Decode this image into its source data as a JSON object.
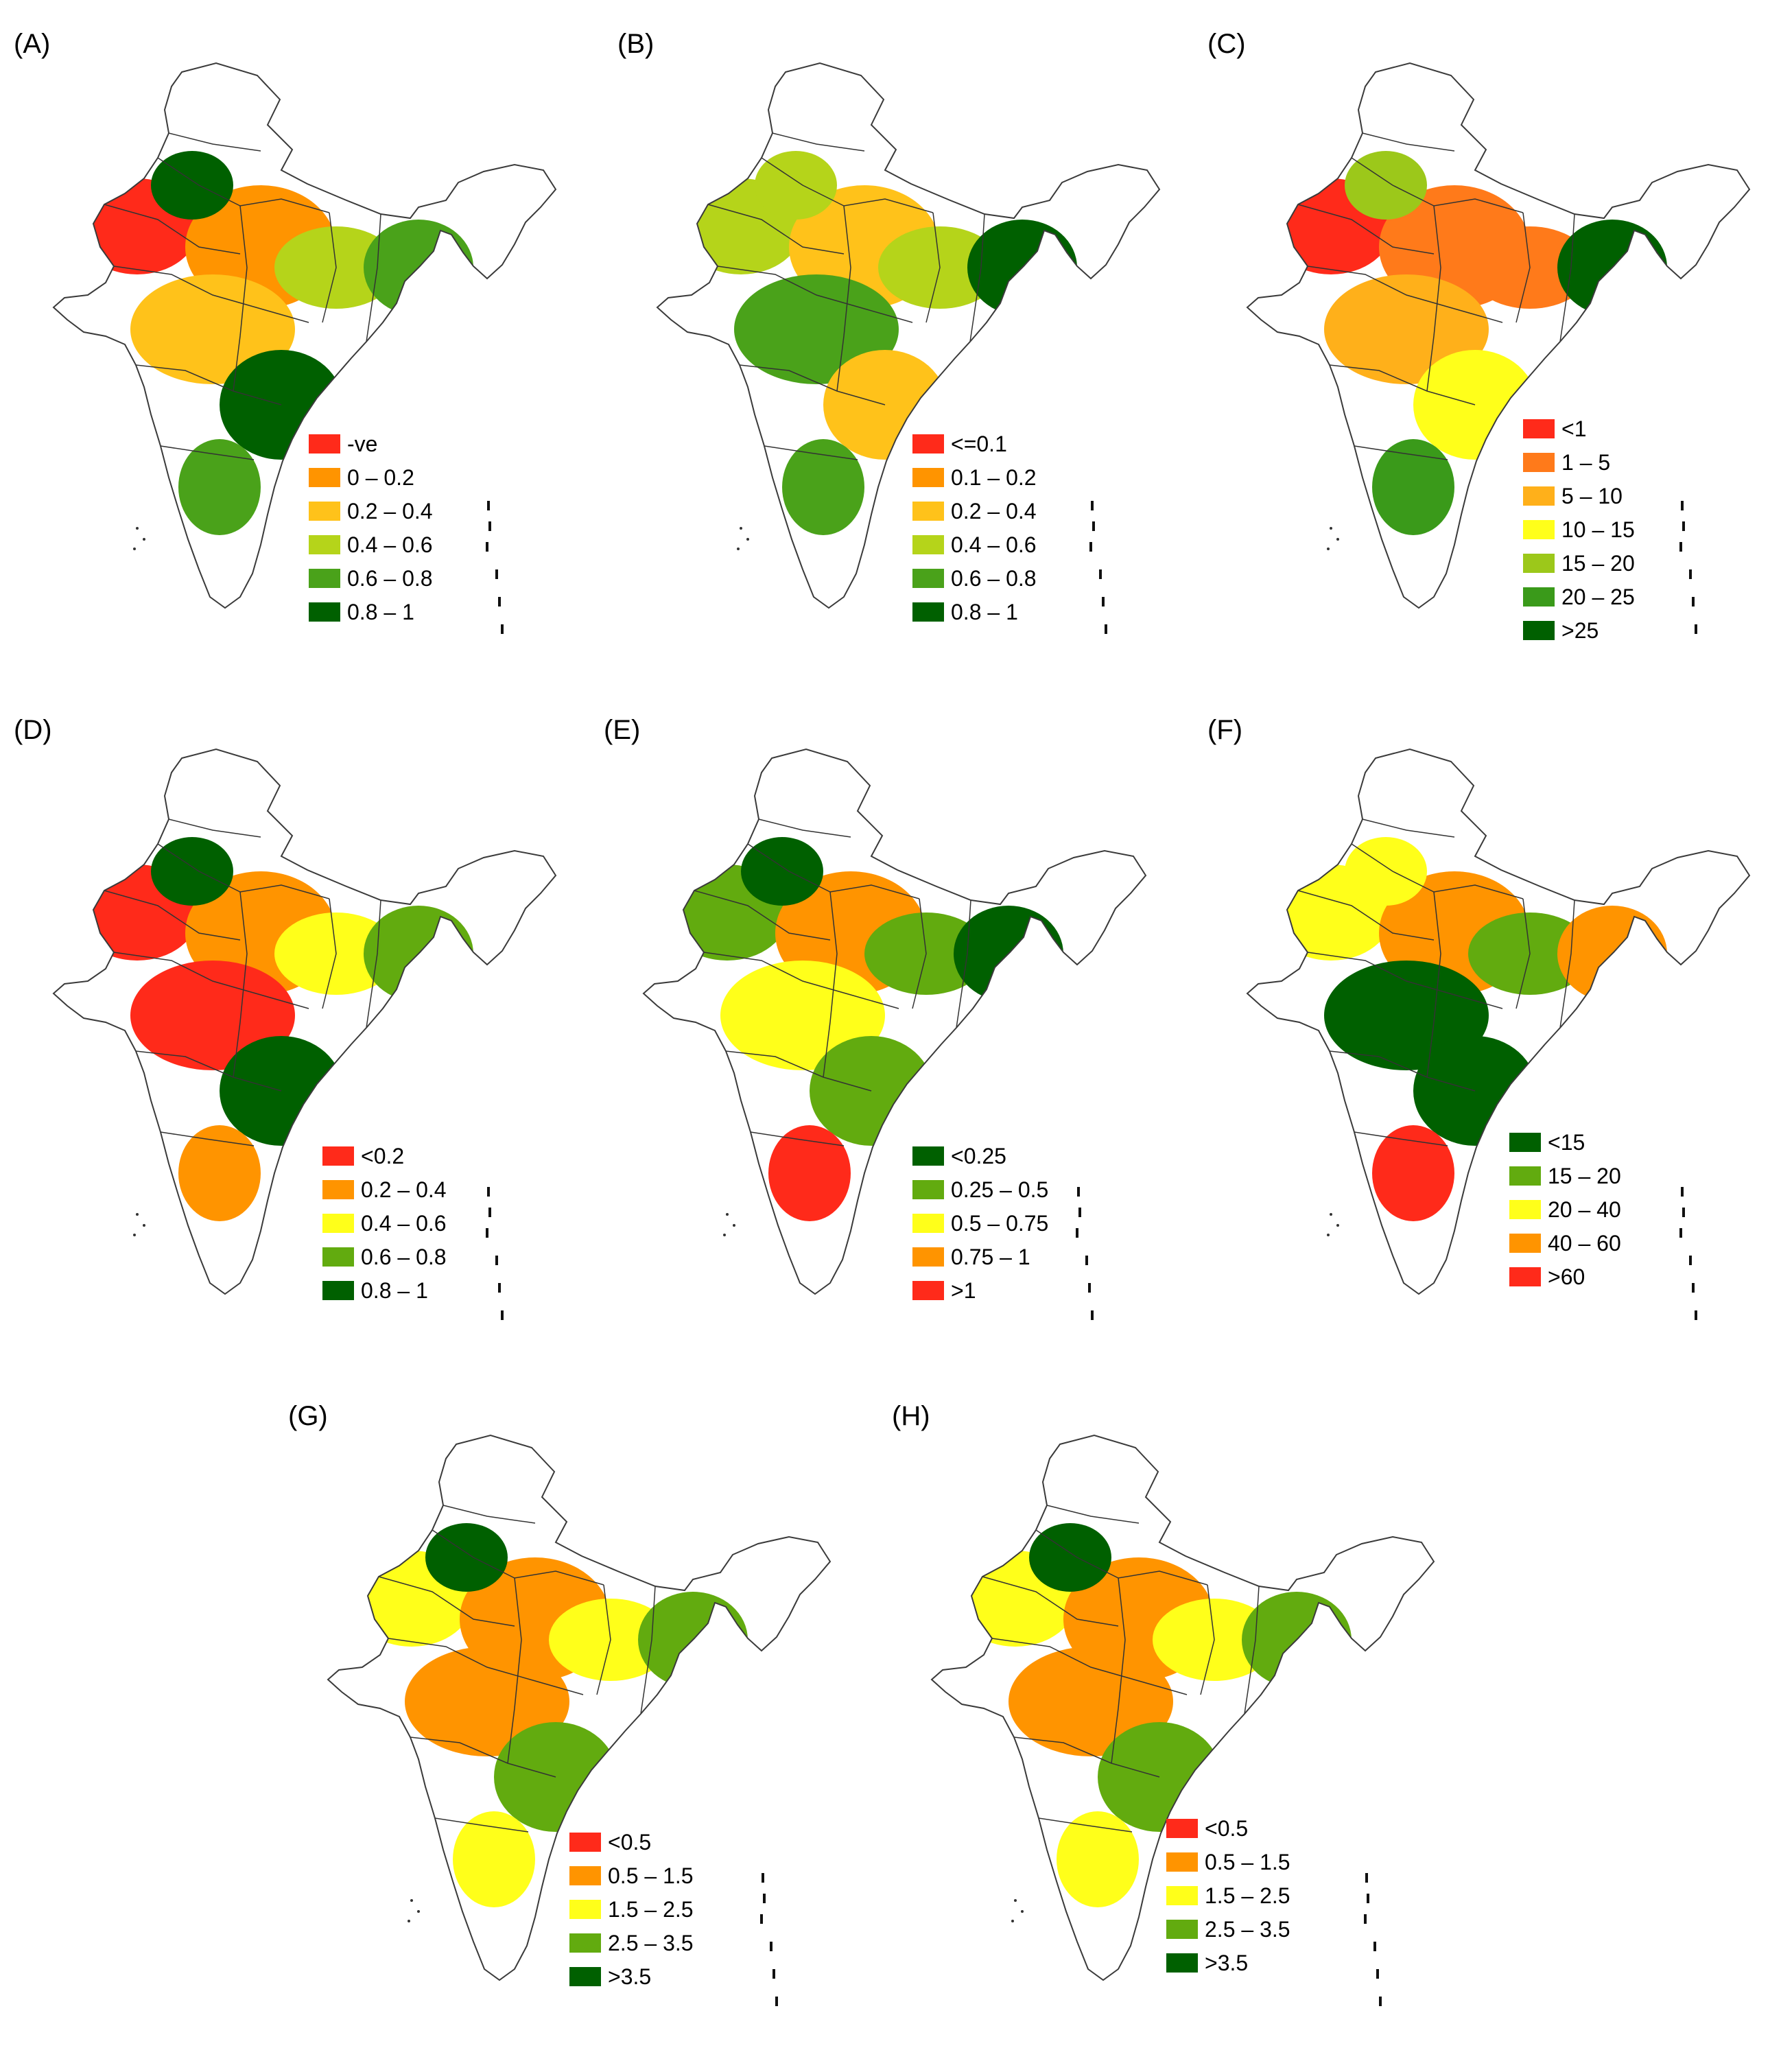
{
  "colors": {
    "red": "#ff2a1a",
    "orange": "#ff9400",
    "gold": "#ffc21a",
    "yellow": "#ffff1a",
    "yellow_green": "#b5d41a",
    "light_green": "#62ab0f",
    "dark_green": "#006000",
    "white": "#ffffff",
    "outline": "#3a3a3a"
  },
  "panels": [
    {
      "id": "A",
      "label": "(A)",
      "legend": [
        {
          "label": "-ve",
          "color": "#ff2a1a"
        },
        {
          "label": "0 – 0.2",
          "color": "#ff9400"
        },
        {
          "label": "0.2 – 0.4",
          "color": "#ffc21a"
        },
        {
          "label": "0.4 – 0.6",
          "color": "#b5d41a"
        },
        {
          "label": "0.6 – 0.8",
          "color": "#4aa21a"
        },
        {
          "label": "0.8 – 1",
          "color": "#006000"
        }
      ]
    },
    {
      "id": "B",
      "label": "(B)",
      "legend": [
        {
          "label": "<=0.1",
          "color": "#ff2a1a"
        },
        {
          "label": "0.1 – 0.2",
          "color": "#ff9400"
        },
        {
          "label": "0.2 – 0.4",
          "color": "#ffc21a"
        },
        {
          "label": "0.4 – 0.6",
          "color": "#b5d41a"
        },
        {
          "label": "0.6 – 0.8",
          "color": "#4aa21a"
        },
        {
          "label": "0.8 – 1",
          "color": "#006000"
        }
      ]
    },
    {
      "id": "C",
      "label": "(C)",
      "legend": [
        {
          "label": "<1",
          "color": "#ff2a1a"
        },
        {
          "label": "1 – 5",
          "color": "#ff7a1a"
        },
        {
          "label": "5 – 10",
          "color": "#ffb01a"
        },
        {
          "label": "10 – 15",
          "color": "#ffff1a"
        },
        {
          "label": "15 – 20",
          "color": "#9cc81a"
        },
        {
          "label": "20 – 25",
          "color": "#3a9a1a"
        },
        {
          "label": ">25",
          "color": "#006000"
        }
      ]
    },
    {
      "id": "D",
      "label": "(D)",
      "legend": [
        {
          "label": "<0.2",
          "color": "#ff2a1a"
        },
        {
          "label": "0.2 – 0.4",
          "color": "#ff9400"
        },
        {
          "label": "0.4 – 0.6",
          "color": "#ffff1a"
        },
        {
          "label": "0.6 – 0.8",
          "color": "#62ab0f"
        },
        {
          "label": "0.8 – 1",
          "color": "#006000"
        }
      ]
    },
    {
      "id": "E",
      "label": "(E)",
      "legend": [
        {
          "label": "<0.25",
          "color": "#006000"
        },
        {
          "label": "0.25 – 0.5",
          "color": "#62ab0f"
        },
        {
          "label": "0.5 – 0.75",
          "color": "#ffff1a"
        },
        {
          "label": "0.75 – 1",
          "color": "#ff9400"
        },
        {
          "label": ">1",
          "color": "#ff2a1a"
        }
      ]
    },
    {
      "id": "F",
      "label": "(F)",
      "legend": [
        {
          "label": "<15",
          "color": "#006000"
        },
        {
          "label": "15 – 20",
          "color": "#62ab0f"
        },
        {
          "label": "20 – 40",
          "color": "#ffff1a"
        },
        {
          "label": "40 – 60",
          "color": "#ff9400"
        },
        {
          "label": ">60",
          "color": "#ff2a1a"
        }
      ]
    },
    {
      "id": "G",
      "label": "(G)",
      "legend": [
        {
          "label": "<0.5",
          "color": "#ff2a1a"
        },
        {
          "label": "0.5 – 1.5",
          "color": "#ff9400"
        },
        {
          "label": "1.5 – 2.5",
          "color": "#ffff1a"
        },
        {
          "label": "2.5 – 3.5",
          "color": "#62ab0f"
        },
        {
          "label": ">3.5",
          "color": "#006000"
        }
      ]
    },
    {
      "id": "H",
      "label": "(H)",
      "legend": [
        {
          "label": "<0.5",
          "color": "#ff2a1a"
        },
        {
          "label": "0.5 – 1.5",
          "color": "#ff9400"
        },
        {
          "label": "1.5 – 2.5",
          "color": "#ffff1a"
        },
        {
          "label": "2.5 – 3.5",
          "color": "#62ab0f"
        },
        {
          "label": ">3.5",
          "color": "#006000"
        }
      ]
    }
  ]
}
